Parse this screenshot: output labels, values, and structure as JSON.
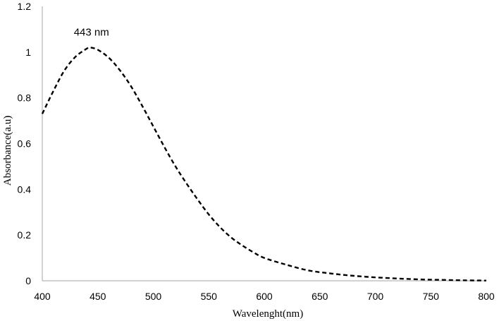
{
  "chart_data": {
    "type": "line",
    "title": "",
    "xlabel": "Wavelenght(nm)",
    "ylabel": "Absorbance(a.u)",
    "xlim": [
      400,
      800
    ],
    "ylim": [
      0,
      1.2
    ],
    "x_ticks": [
      "400",
      "450",
      "500",
      "550",
      "600",
      "650",
      "700",
      "750",
      "800"
    ],
    "y_ticks": [
      "0",
      "0.2",
      "0.4",
      "0.6",
      "0.8",
      "1",
      "1.2"
    ],
    "grid": false,
    "legend": "none",
    "line_style": "dashed",
    "line_color": "#000000",
    "annotations": [
      {
        "text": "443 nm",
        "x": 443,
        "y": 1.02
      }
    ],
    "series": [
      {
        "x": [
          400,
          410,
          420,
          430,
          440,
          443,
          450,
          460,
          470,
          480,
          490,
          500,
          510,
          520,
          530,
          540,
          550,
          560,
          570,
          580,
          590,
          600,
          620,
          640,
          660,
          680,
          700,
          720,
          740,
          760,
          780,
          800
        ],
        "y": [
          0.73,
          0.83,
          0.92,
          0.98,
          1.015,
          1.02,
          1.01,
          0.975,
          0.92,
          0.85,
          0.765,
          0.675,
          0.585,
          0.5,
          0.425,
          0.355,
          0.29,
          0.235,
          0.19,
          0.155,
          0.125,
          0.1,
          0.07,
          0.045,
          0.032,
          0.022,
          0.015,
          0.01,
          0.006,
          0.004,
          0.002,
          0.001
        ]
      }
    ]
  }
}
